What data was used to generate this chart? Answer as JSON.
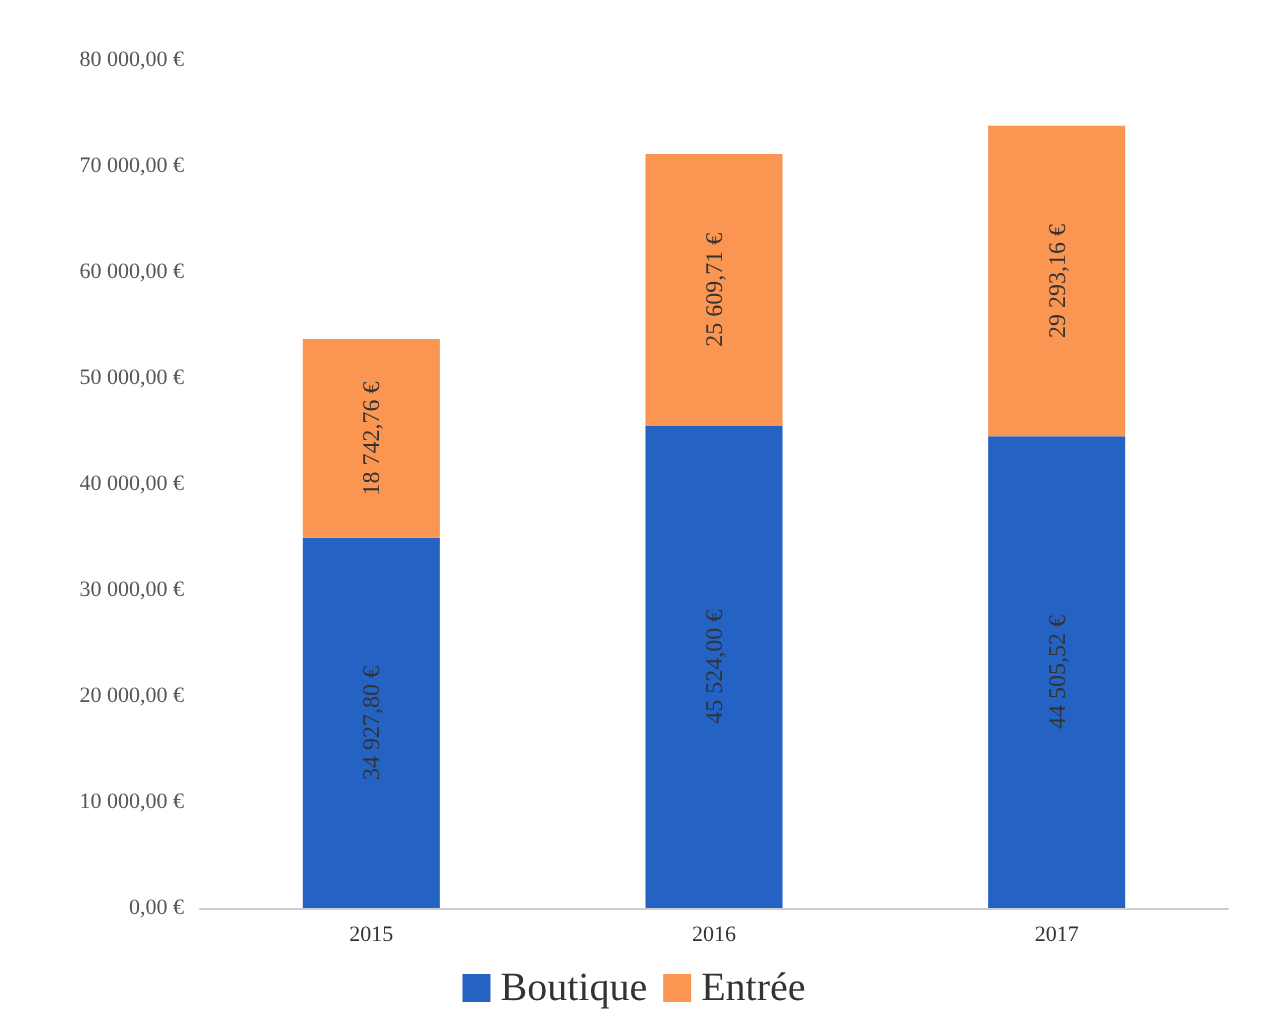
{
  "chart_data": {
    "type": "bar",
    "stacked": true,
    "categories": [
      "2015",
      "2016",
      "2017"
    ],
    "series": [
      {
        "name": "Boutique",
        "color": "#2462c4",
        "values": [
          34927.8,
          45524.0,
          44505.52
        ],
        "value_labels": [
          "34 927,80 €",
          "45 524,00 €",
          "44 505,52 €"
        ]
      },
      {
        "name": "Entrée",
        "color": "#fb9552",
        "values": [
          18742.76,
          25609.71,
          29293.16
        ],
        "value_labels": [
          "18 742,76 €",
          "25 609,71 €",
          "29 293,16 €"
        ]
      }
    ],
    "ylim": [
      0,
      80000
    ],
    "yticks": [
      {
        "value": 0,
        "label": "0,00 €"
      },
      {
        "value": 10000,
        "label": "10 000,00 €"
      },
      {
        "value": 20000,
        "label": "20 000,00 €"
      },
      {
        "value": 30000,
        "label": "30 000,00 €"
      },
      {
        "value": 40000,
        "label": "40 000,00 €"
      },
      {
        "value": 50000,
        "label": "50 000,00 €"
      },
      {
        "value": 60000,
        "label": "60 000,00 €"
      },
      {
        "value": 70000,
        "label": "70 000,00 €"
      },
      {
        "value": 80000,
        "label": "80 000,00 €"
      }
    ],
    "grid": false,
    "legend": "bottom"
  }
}
